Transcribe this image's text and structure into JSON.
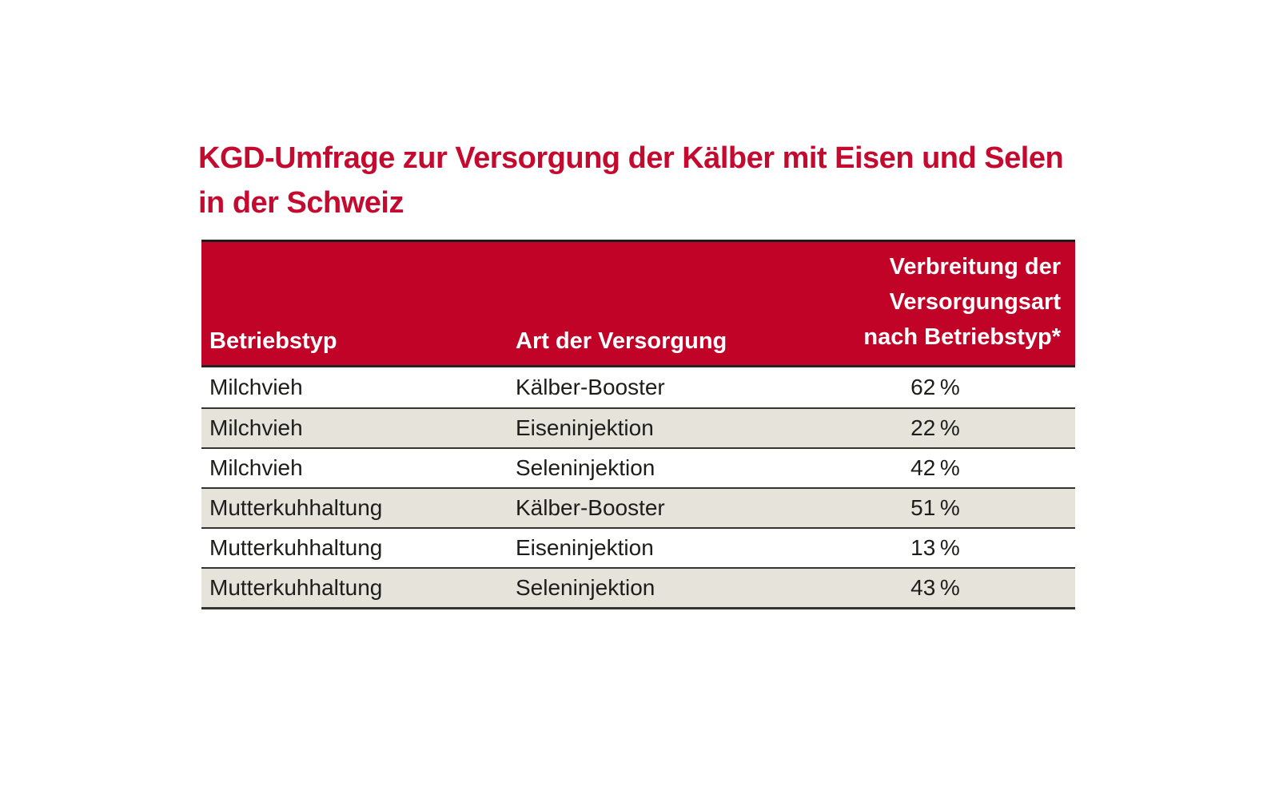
{
  "title": "KGD-Umfrage zur Versorgung der Kälber mit Eisen und Selen in der Schweiz",
  "colors": {
    "title_red": "#c40b2f",
    "header_red": "#c00327",
    "header_text": "#ffffff",
    "row_alt_bg": "#e6e3da",
    "row_bg": "#ffffff",
    "rule": "#35352f",
    "body_text": "#1d1d1b"
  },
  "table": {
    "header": {
      "col1": "Betriebstyp",
      "col2": "Art der Versorgung",
      "col3_lines": [
        "Verbreitung der",
        "Versorgungsart",
        "nach Betriebstyp*"
      ]
    },
    "rows": [
      {
        "betriebstyp": "Milchvieh",
        "art": "Kälber-Booster",
        "wert": "62 %"
      },
      {
        "betriebstyp": "Milchvieh",
        "art": "Eiseninjektion",
        "wert": "22 %"
      },
      {
        "betriebstyp": "Milchvieh",
        "art": "Seleninjektion",
        "wert": "42 %"
      },
      {
        "betriebstyp": "Mutterkuhhaltung",
        "art": "Kälber-Booster",
        "wert": "51 %"
      },
      {
        "betriebstyp": "Mutterkuhhaltung",
        "art": "Eiseninjektion",
        "wert": "13 %"
      },
      {
        "betriebstyp": "Mutterkuhhaltung",
        "art": "Seleninjektion",
        "wert": "43 %"
      }
    ]
  },
  "chart_data": {
    "type": "table",
    "title": "KGD-Umfrage zur Versorgung der Kälber mit Eisen und Selen in der Schweiz",
    "columns": [
      "Betriebstyp",
      "Art der Versorgung",
      "Verbreitung der Versorgungsart nach Betriebstyp*"
    ],
    "rows": [
      [
        "Milchvieh",
        "Kälber-Booster",
        62
      ],
      [
        "Milchvieh",
        "Eiseninjektion",
        22
      ],
      [
        "Milchvieh",
        "Seleninjektion",
        42
      ],
      [
        "Mutterkuhhaltung",
        "Kälber-Booster",
        51
      ],
      [
        "Mutterkuhhaltung",
        "Eiseninjektion",
        13
      ],
      [
        "Mutterkuhhaltung",
        "Seleninjektion",
        43
      ]
    ],
    "value_unit": "%",
    "footnote_marker": "*",
    "layout": {
      "zebra_striping": true,
      "header_bg": "#c00327",
      "value_column_align": "center"
    }
  }
}
